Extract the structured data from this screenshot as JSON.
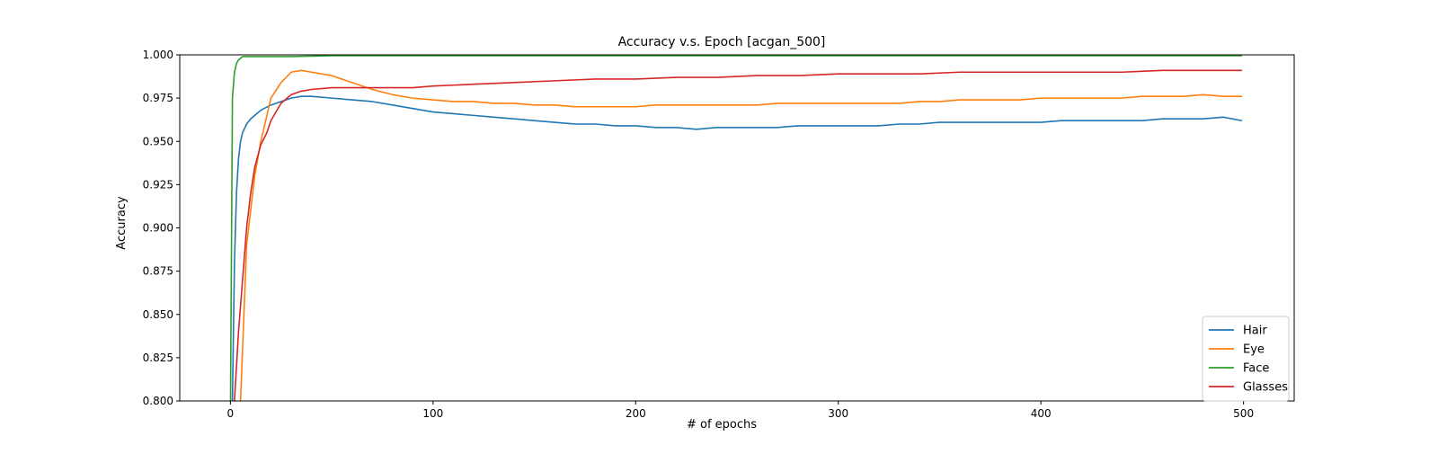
{
  "chart_data": {
    "type": "line",
    "title": "Accuracy v.s. Epoch [acgan_500]",
    "xlabel": "# of epochs",
    "ylabel": "Accuracy",
    "xlim": [
      -25,
      525
    ],
    "ylim": [
      0.8,
      1.0
    ],
    "xticks": [
      0,
      100,
      200,
      300,
      400,
      500
    ],
    "xtick_labels": [
      "0",
      "100",
      "200",
      "300",
      "400",
      "500"
    ],
    "yticks": [
      0.8,
      0.825,
      0.85,
      0.875,
      0.9,
      0.925,
      0.95,
      0.975,
      1.0
    ],
    "ytick_labels": [
      "0.800",
      "0.825",
      "0.850",
      "0.875",
      "0.900",
      "0.925",
      "0.950",
      "0.975",
      "1.000"
    ],
    "grid": false,
    "legend_position": "lower-right",
    "series": [
      {
        "name": "Hair",
        "color": "#1f77b4",
        "x": [
          0,
          1,
          2,
          3,
          4,
          5,
          6,
          8,
          10,
          12,
          15,
          20,
          25,
          30,
          35,
          40,
          50,
          60,
          70,
          80,
          90,
          100,
          110,
          120,
          130,
          140,
          150,
          160,
          170,
          180,
          190,
          200,
          210,
          220,
          230,
          240,
          250,
          260,
          270,
          280,
          290,
          300,
          310,
          320,
          330,
          340,
          350,
          360,
          370,
          380,
          390,
          400,
          410,
          420,
          430,
          440,
          450,
          460,
          470,
          480,
          490,
          499
        ],
        "y": [
          0.79,
          0.8,
          0.88,
          0.92,
          0.94,
          0.95,
          0.955,
          0.96,
          0.963,
          0.965,
          0.968,
          0.971,
          0.973,
          0.975,
          0.976,
          0.976,
          0.975,
          0.974,
          0.973,
          0.971,
          0.969,
          0.967,
          0.966,
          0.965,
          0.964,
          0.963,
          0.962,
          0.961,
          0.96,
          0.96,
          0.959,
          0.959,
          0.958,
          0.958,
          0.957,
          0.958,
          0.958,
          0.958,
          0.958,
          0.959,
          0.959,
          0.959,
          0.959,
          0.959,
          0.96,
          0.96,
          0.961,
          0.961,
          0.961,
          0.961,
          0.961,
          0.961,
          0.962,
          0.962,
          0.962,
          0.962,
          0.962,
          0.963,
          0.963,
          0.963,
          0.964,
          0.962
        ]
      },
      {
        "name": "Eye",
        "color": "#ff7f0e",
        "x": [
          5,
          6,
          7,
          8,
          10,
          12,
          15,
          18,
          20,
          25,
          30,
          35,
          40,
          50,
          60,
          70,
          80,
          90,
          100,
          110,
          120,
          130,
          140,
          150,
          160,
          170,
          180,
          190,
          200,
          210,
          220,
          230,
          240,
          250,
          260,
          270,
          280,
          290,
          300,
          310,
          320,
          330,
          340,
          350,
          360,
          370,
          380,
          390,
          400,
          410,
          420,
          430,
          440,
          450,
          460,
          470,
          480,
          490,
          499
        ],
        "y": [
          0.8,
          0.83,
          0.86,
          0.89,
          0.91,
          0.93,
          0.95,
          0.965,
          0.975,
          0.984,
          0.99,
          0.991,
          0.99,
          0.988,
          0.984,
          0.98,
          0.977,
          0.975,
          0.974,
          0.973,
          0.973,
          0.972,
          0.972,
          0.971,
          0.971,
          0.97,
          0.97,
          0.97,
          0.97,
          0.971,
          0.971,
          0.971,
          0.971,
          0.971,
          0.971,
          0.972,
          0.972,
          0.972,
          0.972,
          0.972,
          0.972,
          0.972,
          0.973,
          0.973,
          0.974,
          0.974,
          0.974,
          0.974,
          0.975,
          0.975,
          0.975,
          0.975,
          0.975,
          0.976,
          0.976,
          0.976,
          0.977,
          0.976,
          0.976
        ]
      },
      {
        "name": "Face",
        "color": "#2ca02c",
        "x": [
          0,
          1,
          2,
          3,
          4,
          5,
          6,
          8,
          10,
          15,
          20,
          30,
          50,
          100,
          150,
          200,
          250,
          300,
          350,
          400,
          450,
          499
        ],
        "y": [
          0.79,
          0.975,
          0.99,
          0.995,
          0.997,
          0.998,
          0.999,
          0.999,
          0.999,
          0.999,
          0.999,
          0.999,
          0.9995,
          0.9995,
          0.9995,
          0.9995,
          0.9995,
          0.9995,
          0.9995,
          0.9995,
          0.9995,
          0.9995
        ]
      },
      {
        "name": "Glasses",
        "color": "#d62728",
        "x": [
          1,
          2,
          4,
          6,
          8,
          10,
          12,
          15,
          18,
          20,
          25,
          30,
          35,
          40,
          50,
          60,
          70,
          80,
          90,
          100,
          120,
          140,
          160,
          180,
          200,
          220,
          240,
          260,
          280,
          300,
          320,
          340,
          360,
          380,
          400,
          420,
          440,
          460,
          480,
          499
        ],
        "y": [
          0.79,
          0.8,
          0.84,
          0.87,
          0.9,
          0.92,
          0.935,
          0.948,
          0.955,
          0.962,
          0.972,
          0.977,
          0.979,
          0.98,
          0.981,
          0.981,
          0.981,
          0.981,
          0.981,
          0.982,
          0.983,
          0.984,
          0.985,
          0.986,
          0.986,
          0.987,
          0.987,
          0.988,
          0.988,
          0.989,
          0.989,
          0.989,
          0.99,
          0.99,
          0.99,
          0.99,
          0.99,
          0.991,
          0.991,
          0.991
        ]
      }
    ]
  }
}
